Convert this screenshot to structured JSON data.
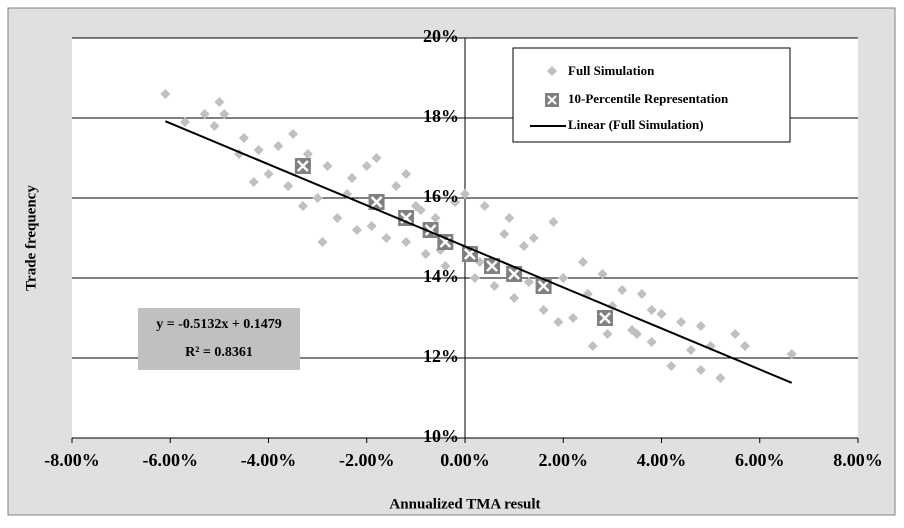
{
  "chart_data": {
    "type": "scatter",
    "x_label": "Annualized TMA result",
    "y_label": "Trade frequency",
    "xlim": [
      -8,
      8
    ],
    "xticks": [
      {
        "value": -8,
        "label": "-8.00%"
      },
      {
        "value": -6,
        "label": "-6.00%"
      },
      {
        "value": -4,
        "label": "-4.00%"
      },
      {
        "value": -2,
        "label": "-2.00%"
      },
      {
        "value": 0,
        "label": "0.00%"
      },
      {
        "value": 2,
        "label": "2.00%"
      },
      {
        "value": 4,
        "label": "4.00%"
      },
      {
        "value": 6,
        "label": "6.00%"
      },
      {
        "value": 8,
        "label": "8.00%"
      }
    ],
    "ylim": [
      10,
      20
    ],
    "yticks": [
      {
        "value": 10,
        "label": "10%"
      },
      {
        "value": 12,
        "label": "12%"
      },
      {
        "value": 14,
        "label": "14%"
      },
      {
        "value": 16,
        "label": "16%"
      },
      {
        "value": 18,
        "label": "18%"
      },
      {
        "value": 20,
        "label": "20%"
      }
    ],
    "grid": true,
    "legend_position": "top-right",
    "annotations": [
      "y = -0.5132x + 0.1479",
      "R² = 0.8361"
    ],
    "series": [
      {
        "name": "Full Simulation",
        "type": "scatter",
        "color": "#c0c0c0",
        "x": [
          -6.1,
          -5.7,
          -5.3,
          -5,
          -5.1,
          -4.9,
          -4.5,
          -4.2,
          -4,
          -3.8,
          -3.5,
          -3.6,
          -3.2,
          -3,
          -2.8,
          -2.6,
          -2.4,
          -2.2,
          -2,
          -1.8,
          -1.6,
          -1.4,
          -1.2,
          -1,
          -0.8,
          -0.6,
          -0.4,
          -0.2,
          0,
          0.2,
          0.4,
          0.6,
          0.8,
          1,
          1.2,
          1.4,
          1.6,
          1.8,
          2,
          2.2,
          2.4,
          2.6,
          2.8,
          3,
          3.2,
          3.4,
          3.6,
          3.8,
          4,
          4.2,
          4.4,
          4.6,
          4.8,
          5,
          5.2,
          5.5,
          5.7,
          6.65,
          -2.9,
          -4.3,
          -1.2,
          0.9,
          1.9,
          3.8,
          2.5,
          -0.5,
          0.3,
          -3.3,
          -1.9,
          1.3,
          4.8,
          -2.3,
          -0.9,
          2.9,
          3.5,
          -4.6
        ],
        "values": [
          18.6,
          17.9,
          18.1,
          18.4,
          17.8,
          18.1,
          17.5,
          17.2,
          16.6,
          17.3,
          17.6,
          16.3,
          17.1,
          16,
          16.8,
          15.5,
          16.1,
          15.2,
          16.8,
          17,
          15,
          16.3,
          14.9,
          15.8,
          14.6,
          15.5,
          14.3,
          15.9,
          16.1,
          14,
          15.8,
          13.8,
          15.1,
          13.5,
          14.8,
          15,
          13.2,
          15.4,
          14,
          13,
          14.4,
          12.3,
          14.1,
          13.3,
          13.7,
          12.7,
          13.6,
          12.4,
          13.1,
          11.8,
          12.9,
          12.2,
          11.7,
          12.3,
          11.5,
          12.6,
          12.3,
          12.1,
          14.9,
          16.4,
          16.6,
          15.5,
          12.9,
          13.2,
          13.6,
          14.7,
          14.4,
          15.8,
          15.3,
          13.9,
          12.8,
          16.5,
          15.7,
          12.6,
          12.6,
          17.1
        ]
      },
      {
        "name": "10-Percentile Representation",
        "type": "percentile",
        "color": "#808080",
        "x": [
          -3.3,
          -1.8,
          -1.2,
          -0.7,
          -0.4,
          0.1,
          0.55,
          1,
          1.6,
          2.85
        ],
        "values": [
          16.8,
          15.9,
          15.5,
          15.2,
          14.9,
          14.6,
          14.3,
          14.1,
          13.8,
          13
        ]
      },
      {
        "name": "Linear (Full Simulation)",
        "type": "line",
        "color": "#000000",
        "x": [
          -6.1,
          6.65
        ],
        "values": [
          17.92,
          11.38
        ]
      }
    ]
  }
}
